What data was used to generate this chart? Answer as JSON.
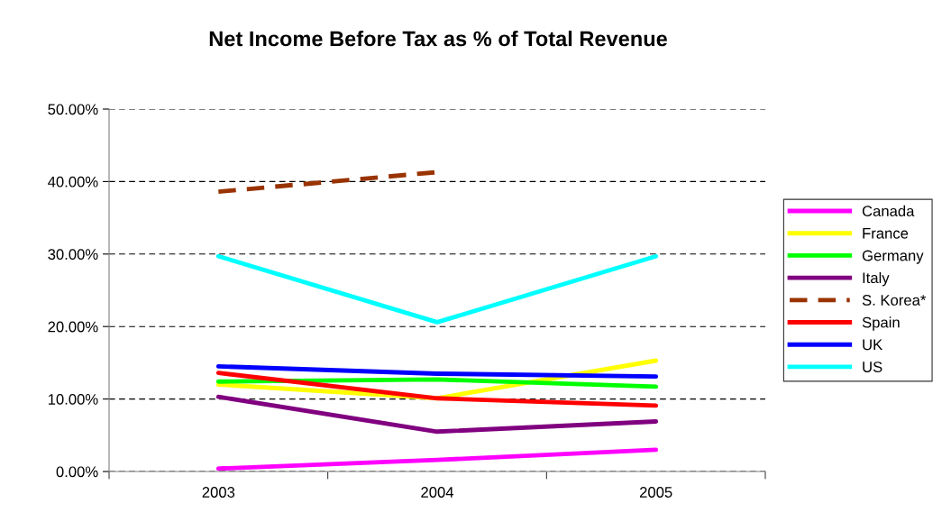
{
  "chart_data": {
    "type": "line",
    "title": "Net Income Before Tax as % of Total Revenue",
    "categories": [
      "2003",
      "2004",
      "2005"
    ],
    "series": [
      {
        "name": "Canada",
        "color": "#ff00ff",
        "values": [
          0.4,
          1.6,
          3.0
        ]
      },
      {
        "name": "France",
        "color": "#ffff00",
        "values": [
          12.0,
          10.1,
          15.3
        ]
      },
      {
        "name": "Germany",
        "color": "#00ff00",
        "values": [
          12.4,
          12.7,
          11.7
        ]
      },
      {
        "name": "Italy",
        "color": "#800080",
        "values": [
          10.3,
          5.5,
          6.9
        ]
      },
      {
        "name": "S. Korea*",
        "color": "#993300",
        "values": [
          38.6,
          41.3,
          null
        ],
        "line_style": "dashed"
      },
      {
        "name": "Spain",
        "color": "#ff0000",
        "values": [
          13.6,
          10.1,
          9.1
        ]
      },
      {
        "name": "UK",
        "color": "#0000ff",
        "values": [
          14.5,
          13.5,
          13.1
        ]
      },
      {
        "name": "US",
        "color": "#00ffff",
        "values": [
          29.7,
          20.6,
          29.7
        ]
      }
    ],
    "ylim": [
      0,
      50
    ],
    "yticks": [
      {
        "value": 0,
        "label": "0.00%"
      },
      {
        "value": 10,
        "label": "10.00%"
      },
      {
        "value": 20,
        "label": "20.00%"
      },
      {
        "value": 30,
        "label": "30.00%"
      },
      {
        "value": 40,
        "label": "40.00%"
      },
      {
        "value": 50,
        "label": "50.00%"
      }
    ],
    "grid": "y",
    "legend": "right",
    "line_style": "solid"
  }
}
